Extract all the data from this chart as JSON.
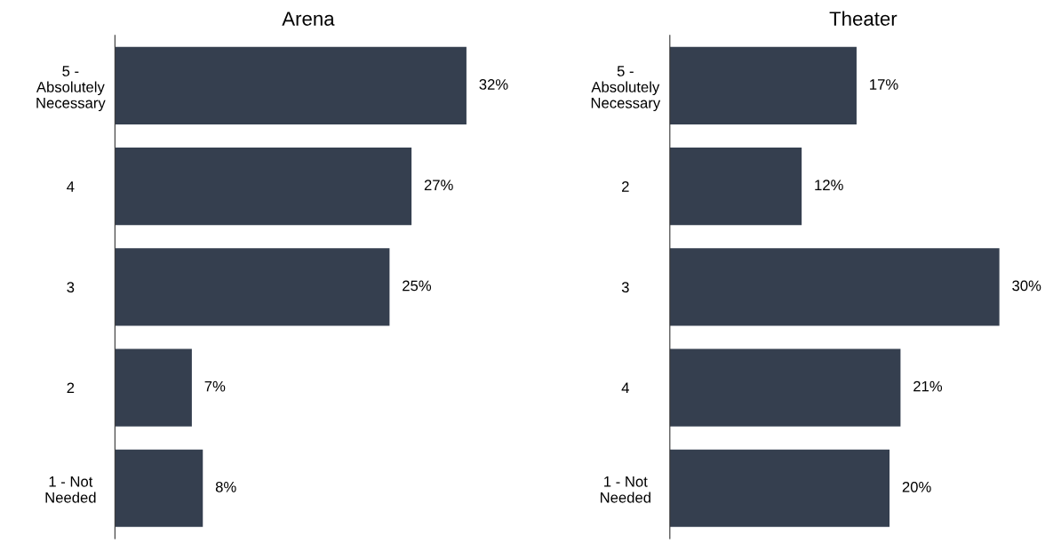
{
  "chart_data": [
    {
      "type": "bar",
      "orientation": "horizontal",
      "title": "Arena",
      "categories": [
        "5 -\nAbsolutely\nNecessary",
        "4",
        "3",
        "2",
        "1 - Not\nNeeded"
      ],
      "values": [
        32,
        27,
        25,
        7,
        8
      ],
      "value_labels": [
        "32%",
        "27%",
        "25%",
        "7%",
        "8%"
      ],
      "color": "#353f4f",
      "tick_labels": "y",
      "grid": false,
      "legend": false
    },
    {
      "type": "bar",
      "orientation": "horizontal",
      "title": "Theater",
      "categories": [
        "5 -\nAbsolutely\nNecessary",
        "2",
        "3",
        "4",
        "1 - Not\nNeeded"
      ],
      "values": [
        17,
        12,
        30,
        21,
        20
      ],
      "value_labels": [
        "17%",
        "12%",
        "30%",
        "21%",
        "20%"
      ],
      "color": "#353f4f",
      "tick_labels": "y",
      "grid": false,
      "legend": false
    }
  ]
}
